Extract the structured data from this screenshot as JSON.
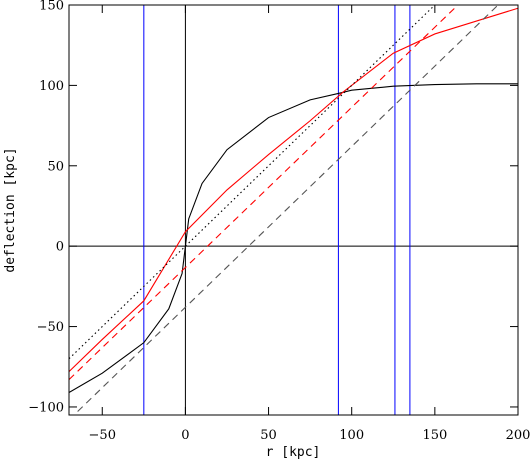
{
  "chart_data": {
    "type": "line",
    "title": "",
    "xlabel": "r [kpc]",
    "ylabel": "deflection [kpc]",
    "xlim": [
      -70,
      200
    ],
    "ylim": [
      -105,
      150
    ],
    "xticks": [
      -50,
      0,
      50,
      100,
      150,
      200
    ],
    "yticks": [
      -100,
      -50,
      0,
      50,
      100,
      150
    ],
    "grid": false,
    "legend": "none",
    "colors": {
      "black": "#000000",
      "red": "#ff0000",
      "blue": "#0000ff",
      "gray": "#555555"
    },
    "series": [
      {
        "color": "#000000",
        "style": "solid",
        "x": [
          -70,
          -50,
          -25,
          -10,
          -2,
          0,
          2,
          10,
          25,
          50,
          75,
          92,
          100,
          125,
          150,
          175,
          200
        ],
        "y": [
          -91,
          -79,
          -60,
          -39,
          -17,
          0,
          17,
          39,
          60,
          80,
          91,
          95,
          97,
          99.5,
          100.5,
          101,
          101
        ]
      },
      {
        "color": "#ff0000",
        "style": "solid",
        "x": [
          -70,
          -50,
          -25,
          0,
          25,
          50,
          75,
          95,
          125,
          150,
          175,
          200
        ],
        "y": [
          -78,
          -58,
          -34,
          9,
          35,
          57,
          78,
          96,
          120,
          132,
          140,
          148
        ]
      },
      {
        "color": "#ff0000",
        "style": "dashed",
        "x": [
          -70,
          200
        ],
        "y": [
          -83,
          186
        ]
      },
      {
        "color": "#000000",
        "style": "dotted",
        "x": [
          -70,
          200
        ],
        "y": [
          -70,
          200
        ]
      },
      {
        "color": "#555555",
        "style": "dashed",
        "x": [
          -70,
          200
        ],
        "y": [
          -108,
          162
        ]
      }
    ],
    "hlines": [
      {
        "y": 0,
        "color": "#000000"
      }
    ],
    "vlines": [
      {
        "x": 0,
        "color": "#000000"
      },
      {
        "x": -25,
        "color": "#0000ff"
      },
      {
        "x": 92,
        "color": "#0000ff"
      },
      {
        "x": 126,
        "color": "#0000ff"
      },
      {
        "x": 135,
        "color": "#0000ff"
      }
    ]
  }
}
